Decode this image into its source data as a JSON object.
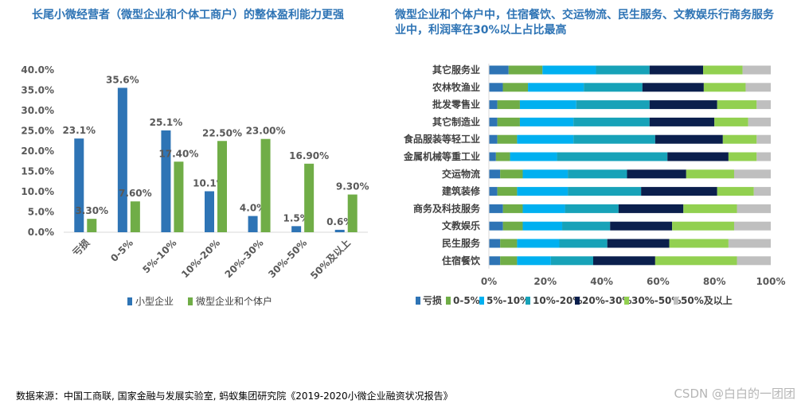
{
  "chart_data": [
    {
      "type": "bar",
      "title": "长尾小微经营者（微型企业和个体工商户）的整体盈利能力更强",
      "categories": [
        "亏损",
        "0-5%",
        "5%-10%",
        "10%-20%",
        "20%-30%",
        "30%-50%",
        "50%及以上"
      ],
      "series": [
        {
          "name": "小型企业",
          "values": [
            23.1,
            35.6,
            25.1,
            10.1,
            4.0,
            1.5,
            0.6
          ],
          "labels": [
            "23.1%",
            "35.6%",
            "25.1%",
            "10.1%",
            "4.0%",
            "1.5%",
            "0.6%"
          ]
        },
        {
          "name": "微型企业和个体户",
          "values": [
            3.3,
            7.6,
            17.4,
            22.5,
            23.0,
            16.9,
            9.3
          ],
          "labels": [
            "3.30%",
            "7.60%",
            "17.40%",
            "22.50%",
            "23.00%",
            "16.90%",
            "9.30%"
          ]
        }
      ],
      "ylim": [
        0,
        40
      ],
      "yticks": [
        "0.0%",
        "5.0%",
        "10.0%",
        "15.0%",
        "20.0%",
        "25.0%",
        "30.0%",
        "35.0%",
        "40.0%"
      ],
      "legend": "bottom",
      "grid": false
    },
    {
      "type": "bar",
      "orientation": "horizontal",
      "stacked": "percent",
      "title": "微型企业和个体户中，住宿餐饮、交运物流、民生服务、文教娱乐行商务服务业中，利润率在30%以上占比最高",
      "categories": [
        "其它服务业",
        "农林牧渔业",
        "批发零售业",
        "其它制造业",
        "食品服装等轻工业",
        "金属机械等重工业",
        "交运物流",
        "建筑装修",
        "商务及科技服务",
        "文教娱乐",
        "民生服务",
        "住宿餐饮"
      ],
      "series": [
        {
          "name": "亏损",
          "values": [
            7,
            5,
            3,
            3,
            3,
            3,
            4,
            3,
            5,
            5,
            4,
            4
          ]
        },
        {
          "name": "0-5%",
          "values": [
            12,
            9,
            8,
            8,
            7,
            6,
            8,
            7,
            7,
            7,
            6,
            6
          ]
        },
        {
          "name": "5%-10%",
          "values": [
            19,
            20,
            20,
            19,
            20,
            20,
            16,
            18,
            15,
            14,
            15,
            12
          ]
        },
        {
          "name": "10%-20%",
          "values": [
            19,
            21,
            26,
            27,
            29,
            47,
            21,
            26,
            19,
            17,
            17,
            15
          ]
        },
        {
          "name": "20%-30%",
          "values": [
            19,
            22,
            24,
            23,
            24,
            26,
            21,
            27,
            23,
            22,
            22,
            22
          ]
        },
        {
          "name": "30%-50%",
          "values": [
            14,
            15,
            14,
            12,
            12,
            12,
            17,
            13,
            19,
            22,
            21,
            29
          ]
        },
        {
          "name": "50%及以上",
          "values": [
            10,
            9,
            5,
            8,
            5,
            6,
            13,
            6,
            12,
            13,
            15,
            12
          ]
        }
      ],
      "xlim": [
        0,
        100
      ],
      "xticks": [
        "0%",
        "20%",
        "40%",
        "60%",
        "80%",
        "100%"
      ],
      "legend": "bottom",
      "grid": false
    }
  ],
  "colors": {
    "small": "#2e74b5",
    "micro": "#70ad47",
    "stack": [
      "#2e74b5",
      "#70ad47",
      "#00b0f0",
      "#17a2b8",
      "#0b1f4d",
      "#92d050",
      "#bfbfbf"
    ]
  },
  "source": "数据来源：中国工商联, 国家金融与发展实验室, 蚂蚁集团研究院《2019-2020小微企业融资状况报告》",
  "watermark": "CSDN @白白的一团团"
}
